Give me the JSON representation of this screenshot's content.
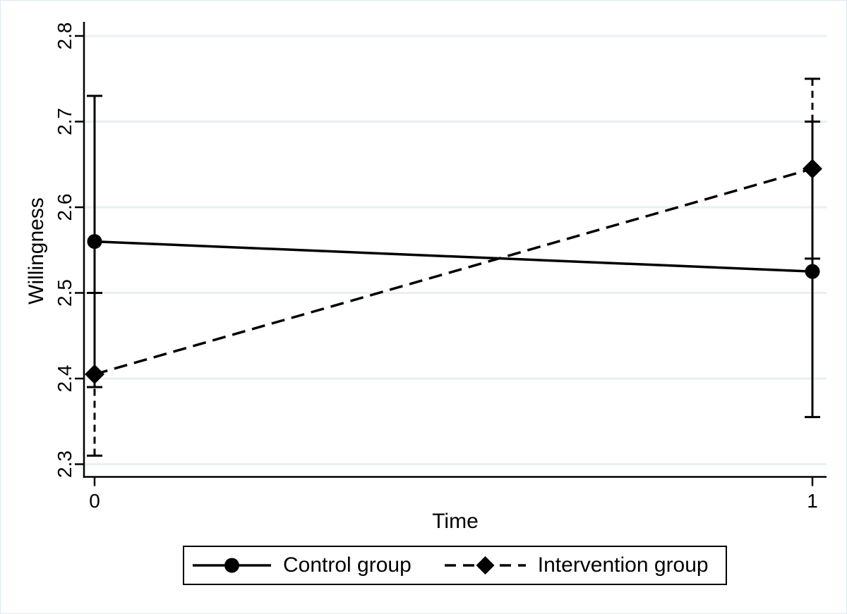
{
  "figure": {
    "background": "#ffffff",
    "frame_border_color": "#dde8ee"
  },
  "chart_data": {
    "type": "line",
    "title": "",
    "xlabel": "Time",
    "ylabel": "Willingness",
    "x": [
      0,
      1
    ],
    "xtick_labels": [
      "0",
      "1"
    ],
    "yticks": [
      2.3,
      2.4,
      2.5,
      2.6,
      2.7,
      2.8
    ],
    "ytick_labels": [
      "2.3",
      "2.4",
      "2.5",
      "2.6",
      "2.7",
      "2.8"
    ],
    "ylim": [
      2.29,
      2.82
    ],
    "grid": true,
    "gridline_color": "#e7f0f2",
    "axis_color": "#000000",
    "line_color": "#000000",
    "error_bars": true,
    "legend_position": "bottom",
    "series": [
      {
        "name": "Control group",
        "line_style": "solid",
        "marker": "circle",
        "values": [
          2.56,
          2.525
        ],
        "ci_low": [
          2.39,
          2.355
        ],
        "ci_high": [
          2.73,
          2.7
        ]
      },
      {
        "name": "Intervention group",
        "line_style": "dashed",
        "marker": "diamond",
        "values": [
          2.405,
          2.645
        ],
        "ci_low": [
          2.31,
          2.54
        ],
        "ci_high": [
          2.5,
          2.75
        ]
      }
    ]
  }
}
